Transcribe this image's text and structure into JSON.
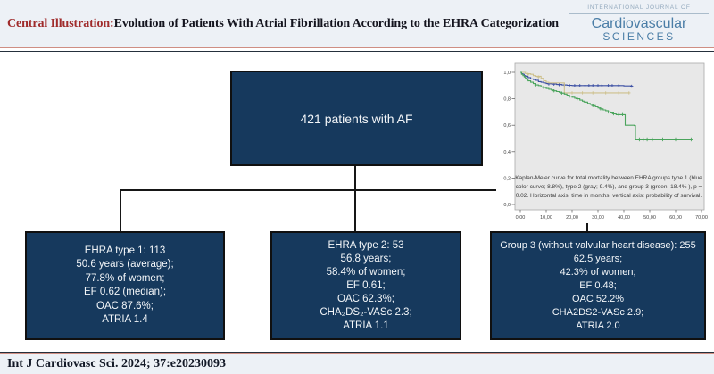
{
  "header": {
    "title_prefix": "Central Illustration:",
    "title_rest": " Evolution of Patients With Atrial Fibrillation According to the EHRA Categorization",
    "journal": {
      "line1": "INTERNATIONAL JOURNAL OF",
      "line2": "Cardiovascular",
      "line3": "SCIENCES"
    }
  },
  "flowchart": {
    "root_box": {
      "label": "421 patients with AF"
    },
    "boxes": [
      {
        "lines": [
          "EHRA type 1: 113",
          "50.6 years (average);",
          "77.8% of women;",
          "EF 0.62 (median);",
          "OAC 87.6%;",
          "ATRIA 1.4"
        ]
      },
      {
        "lines": [
          "EHRA type 2: 53",
          "56.8 years;",
          "58.4% of women;",
          "EF 0.61;",
          "OAC 62.3%;",
          "CHA₂DS₂-VASc 2.3;",
          "ATRIA 1.1"
        ]
      },
      {
        "lines": [
          "Group 3 (without valvular heart disease): 255",
          "62.5 years;",
          "42.3% of women;",
          "EF 0.48;",
          "OAC 52.2%",
          "CHA2DS2-VASc 2.9;",
          "ATRIA 2.0"
        ]
      }
    ],
    "box_color": "#16395d"
  },
  "chart_data": {
    "type": "line",
    "subtype": "kaplan-meier-step",
    "title": "",
    "xlabel": "time in months",
    "ylabel": "probability of survival",
    "xlim": [
      0,
      70
    ],
    "ylim": [
      0,
      1
    ],
    "plot_bg": "#e8e8e8",
    "x_tick_values": [
      0,
      10,
      20,
      30,
      40,
      50,
      60,
      70
    ],
    "x_tick_labels": [
      "0,00",
      "10,00",
      "20,00",
      "30,00",
      "40,00",
      "50,00",
      "60,00",
      "70,00"
    ],
    "y_tick_values": [
      0,
      0.2,
      0.4,
      0.6,
      0.8,
      1.0
    ],
    "y_tick_labels": [
      "0,0",
      "0,2",
      "0,4",
      "0,6",
      "0,8",
      "1,0"
    ],
    "grid": false,
    "legend": "none",
    "caption": "Kaplan-Meier curve for total mortality between EHRA groups type 1 (blue color curve; 8.8%), type 2 (gray; 9.4%), and group 3 (green; 18.4% ), p = 0.02. Horizontal axis: time in months; vertical axis: probability of survival.",
    "series": [
      {
        "name": "EHRA type 1",
        "mortality": "8.8%",
        "color": "#3c50a4",
        "points": [
          [
            0,
            1.0
          ],
          [
            0.5,
            0.99
          ],
          [
            1,
            0.985
          ],
          [
            1.5,
            0.975
          ],
          [
            2,
            0.97
          ],
          [
            3,
            0.96
          ],
          [
            4,
            0.95
          ],
          [
            5,
            0.945
          ],
          [
            6,
            0.94
          ],
          [
            7,
            0.93
          ],
          [
            8,
            0.925
          ],
          [
            9,
            0.92
          ],
          [
            10,
            0.915
          ],
          [
            12,
            0.912
          ],
          [
            14,
            0.908
          ],
          [
            16,
            0.905
          ],
          [
            18,
            0.902
          ],
          [
            20,
            0.9
          ],
          [
            40,
            0.897
          ],
          [
            43,
            0.895
          ]
        ],
        "censors": [
          [
            11,
            0.912
          ],
          [
            13,
            0.91
          ],
          [
            15,
            0.907
          ],
          [
            17,
            0.904
          ],
          [
            19,
            0.901
          ],
          [
            21,
            0.9
          ],
          [
            23,
            0.9
          ],
          [
            25,
            0.9
          ],
          [
            26.5,
            0.9
          ],
          [
            28,
            0.9
          ],
          [
            30,
            0.9
          ],
          [
            31.5,
            0.9
          ],
          [
            34,
            0.9
          ],
          [
            35.5,
            0.9
          ],
          [
            38,
            0.9
          ],
          [
            43,
            0.895
          ]
        ]
      },
      {
        "name": "EHRA type 2",
        "mortality": "9.4%",
        "color": "#cdc08c",
        "points": [
          [
            0,
            1.0
          ],
          [
            2,
            0.99
          ],
          [
            4,
            0.985
          ],
          [
            5,
            0.975
          ],
          [
            6,
            0.97
          ],
          [
            8,
            0.955
          ],
          [
            9,
            0.935
          ],
          [
            10,
            0.925
          ],
          [
            11,
            0.92
          ],
          [
            16,
            0.92
          ],
          [
            17,
            0.845
          ],
          [
            42,
            0.845
          ]
        ],
        "censors": [
          [
            3,
            0.985
          ],
          [
            7,
            0.965
          ],
          [
            20,
            0.845
          ],
          [
            24,
            0.845
          ],
          [
            28,
            0.845
          ],
          [
            33,
            0.845
          ],
          [
            38,
            0.845
          ],
          [
            42,
            0.845
          ]
        ]
      },
      {
        "name": "Group 3",
        "mortality": "18.4%",
        "color": "#4aa45c",
        "points": [
          [
            0,
            1.0
          ],
          [
            0.5,
            0.985
          ],
          [
            1,
            0.975
          ],
          [
            1.5,
            0.965
          ],
          [
            2,
            0.955
          ],
          [
            2.5,
            0.945
          ],
          [
            3,
            0.935
          ],
          [
            4,
            0.925
          ],
          [
            5,
            0.915
          ],
          [
            6,
            0.905
          ],
          [
            7,
            0.9
          ],
          [
            8,
            0.89
          ],
          [
            9,
            0.885
          ],
          [
            10,
            0.878
          ],
          [
            11,
            0.872
          ],
          [
            12,
            0.866
          ],
          [
            13,
            0.86
          ],
          [
            14,
            0.855
          ],
          [
            15,
            0.85
          ],
          [
            16,
            0.843
          ],
          [
            17,
            0.836
          ],
          [
            18,
            0.828
          ],
          [
            19,
            0.82
          ],
          [
            20,
            0.812
          ],
          [
            21,
            0.805
          ],
          [
            22,
            0.8
          ],
          [
            23,
            0.79
          ],
          [
            24,
            0.782
          ],
          [
            25,
            0.775
          ],
          [
            26,
            0.765
          ],
          [
            27,
            0.757
          ],
          [
            28,
            0.748
          ],
          [
            29,
            0.74
          ],
          [
            30,
            0.732
          ],
          [
            31,
            0.724
          ],
          [
            32,
            0.716
          ],
          [
            33,
            0.71
          ],
          [
            34,
            0.7
          ],
          [
            35,
            0.693
          ],
          [
            36,
            0.686
          ],
          [
            37,
            0.68
          ],
          [
            40,
            0.68
          ],
          [
            40.5,
            0.6
          ],
          [
            44,
            0.597
          ],
          [
            44.5,
            0.49
          ],
          [
            66,
            0.49
          ]
        ],
        "censors": [
          [
            6,
            0.905
          ],
          [
            9,
            0.885
          ],
          [
            13,
            0.86
          ],
          [
            16,
            0.843
          ],
          [
            19,
            0.82
          ],
          [
            22,
            0.8
          ],
          [
            25,
            0.775
          ],
          [
            28,
            0.748
          ],
          [
            31,
            0.724
          ],
          [
            34,
            0.7
          ],
          [
            36,
            0.686
          ],
          [
            38,
            0.68
          ],
          [
            39.5,
            0.68
          ],
          [
            46,
            0.49
          ],
          [
            47.5,
            0.49
          ],
          [
            49,
            0.49
          ],
          [
            51,
            0.49
          ],
          [
            55,
            0.49
          ],
          [
            60,
            0.49
          ],
          [
            66,
            0.49
          ]
        ]
      }
    ]
  },
  "footer": {
    "citation": "Int J Cardiovasc Sci. 2024; 37:e20230093"
  },
  "colors": {
    "box_navy": "#16395d",
    "title_red": "#a02c2c",
    "logo_blue": "#4a7da6",
    "band_bg": "#edf1f6",
    "salmon_rule": "#cf8e83",
    "curve_blue": "#3c50a4",
    "curve_gray": "#cdc08c",
    "curve_green": "#4aa45c"
  }
}
